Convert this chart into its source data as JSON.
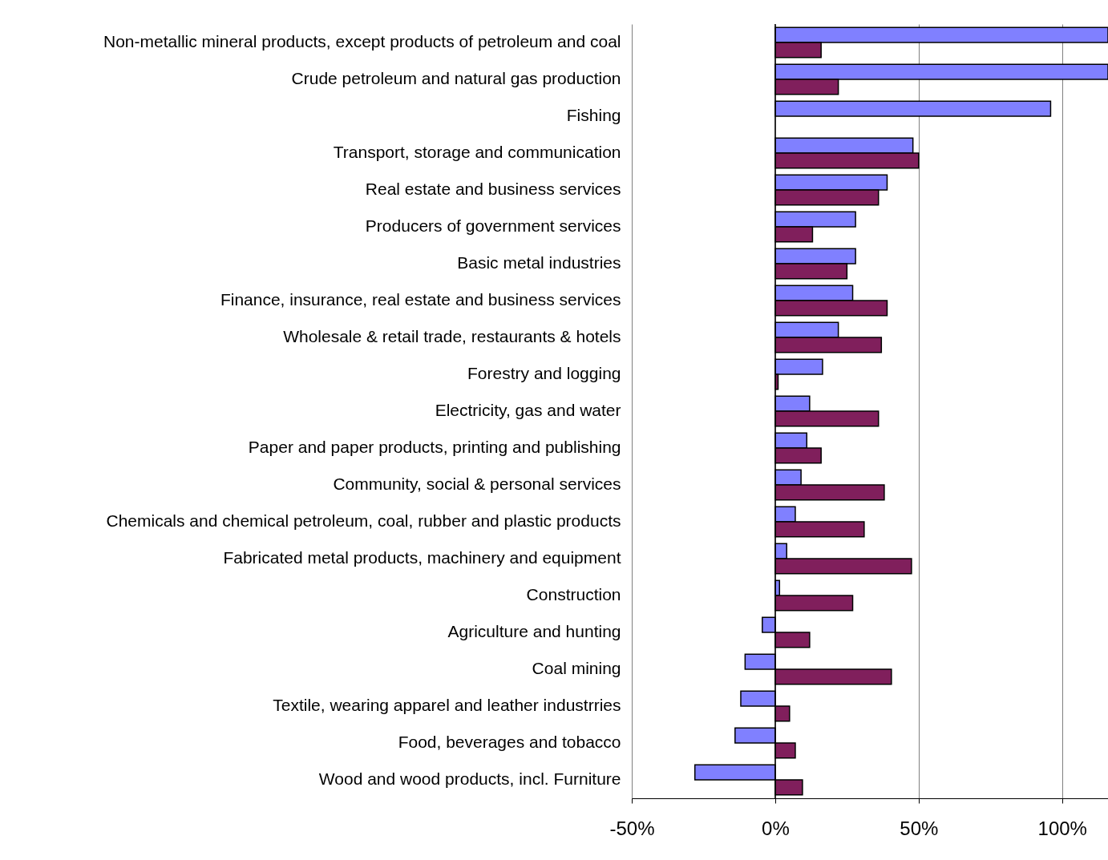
{
  "chart_data": {
    "type": "bar",
    "orientation": "horizontal",
    "categories": [
      "Non-metallic mineral products, except products of petroleum and coal",
      "Crude petroleum and natural gas production",
      "Fishing",
      "Transport, storage and communication",
      "Real estate and business services",
      "Producers of government services",
      "Basic metal industries",
      "Finance, insurance, real estate and business services",
      "Wholesale & retail trade, restaurants & hotels",
      "Forestry and logging",
      "Electricity, gas and water",
      "Paper and paper products, printing and publishing",
      "Community, social & personal services",
      "Chemicals and chemical petroleum, coal, rubber and plastic products",
      "Fabricated metal products, machinery and equipment",
      "Construction",
      "Agriculture and hunting",
      "Coal mining",
      "Textile, wearing apparel and leather industrries",
      "Food, beverages and tobacco",
      "Wood and wood products, incl. Furniture"
    ],
    "series": [
      {
        "color": "#8080ff",
        "values": [
          116,
          116,
          96,
          48,
          39,
          28,
          28,
          27,
          22,
          16.5,
          12,
          11,
          9,
          7,
          4,
          1.5,
          -4.5,
          -10.5,
          -12,
          -14,
          -28
        ]
      },
      {
        "color": "#801f5c",
        "values": [
          16,
          22,
          null,
          50,
          36,
          13,
          25,
          39,
          37,
          1,
          36,
          16,
          38,
          31,
          47.5,
          27,
          12,
          40.5,
          5,
          7,
          9.5
        ]
      }
    ],
    "xlim": [
      -50,
      116
    ],
    "xticks": [
      {
        "value": -50,
        "label": "-50%"
      },
      {
        "value": 0,
        "label": "0%"
      },
      {
        "value": 50,
        "label": "50%"
      },
      {
        "value": 100,
        "label": "100%"
      }
    ],
    "grid": "x",
    "legend": false
  }
}
